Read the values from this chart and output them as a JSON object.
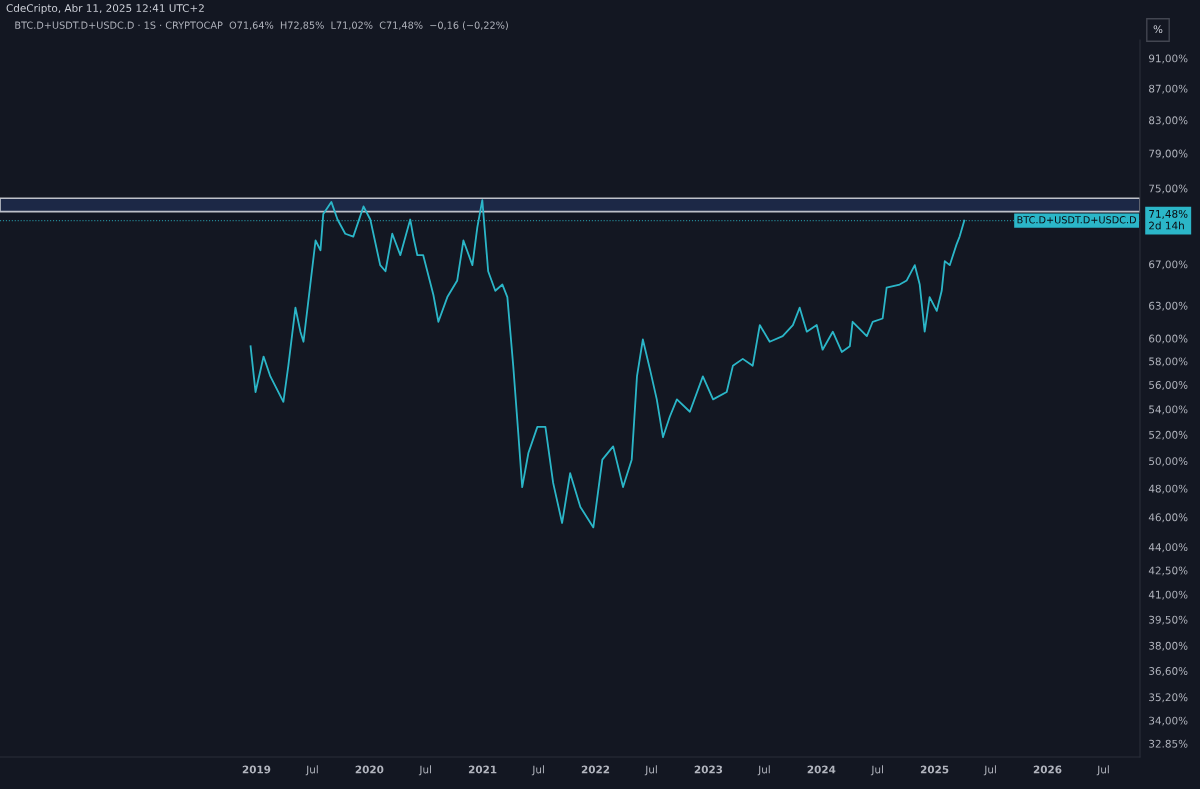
{
  "chart_data": {
    "type": "line",
    "subtitle": "CdeCripto, Abr 11, 2025 12:41 UTC+2",
    "title": "BTC.D+USDT.D+USDC.D · 1S · CRYPTOCAP  O71,64%  H72,85%  L71,02%  C71,48%  −0,16 (−0,22%)",
    "x": [
      "2018-12-13",
      "2018-12-29",
      "2019-01-24",
      "2019-02-15",
      "2019-03-29",
      "2019-04-14",
      "2019-05-07",
      "2019-05-23",
      "2019-06-02",
      "2019-06-24",
      "2019-07-11",
      "2019-07-27",
      "2019-08-05",
      "2019-08-31",
      "2019-09-20",
      "2019-10-15",
      "2019-11-10",
      "2019-12-13",
      "2020-01-04",
      "2020-02-05",
      "2020-02-22",
      "2020-03-15",
      "2020-04-10",
      "2020-05-12",
      "2020-05-22",
      "2020-06-04",
      "2020-06-23",
      "2020-07-26",
      "2020-08-11",
      "2020-09-09",
      "2020-10-11",
      "2020-10-31",
      "2020-11-29",
      "2020-12-15",
      "2020-12-31",
      "2021-01-19",
      "2021-02-11",
      "2021-03-06",
      "2021-03-22",
      "2021-04-10",
      "2021-04-26",
      "2021-05-09",
      "2021-05-29",
      "2021-06-27",
      "2021-07-23",
      "2021-08-17",
      "2021-09-15",
      "2021-10-11",
      "2021-11-13",
      "2021-12-25",
      "2022-01-23",
      "2022-02-27",
      "2022-03-31",
      "2022-04-28",
      "2022-05-15",
      "2022-06-03",
      "2022-06-26",
      "2022-07-18",
      "2022-08-07",
      "2022-08-29",
      "2022-09-21",
      "2022-11-02",
      "2022-12-14",
      "2023-01-16",
      "2023-03-01",
      "2023-03-21",
      "2023-04-22",
      "2023-05-24",
      "2023-06-16",
      "2023-07-18",
      "2023-08-29",
      "2023-10-01",
      "2023-10-23",
      "2023-11-15",
      "2023-12-17",
      "2024-01-05",
      "2024-02-07",
      "2024-03-07",
      "2024-04-02",
      "2024-04-11",
      "2024-05-27",
      "2024-06-15",
      "2024-07-17",
      "2024-07-30",
      "2024-09-10",
      "2024-10-03",
      "2024-10-29",
      "2024-11-14",
      "2024-11-30",
      "2024-12-16",
      "2025-01-08",
      "2025-01-24",
      "2025-02-03",
      "2025-02-19",
      "2025-03-13",
      "2025-03-23",
      "2025-04-07"
    ],
    "series": [
      {
        "color": "#2bb6c8",
        "values": [
          59.3,
          55.4,
          58.4,
          56.7,
          54.6,
          57.6,
          62.8,
          60.6,
          59.7,
          65.0,
          69.4,
          68.4,
          72.2,
          73.5,
          71.6,
          70.1,
          69.8,
          73.0,
          71.6,
          66.9,
          66.3,
          70.1,
          67.9,
          71.6,
          69.8,
          67.9,
          67.9,
          64.0,
          61.5,
          63.8,
          65.4,
          69.4,
          66.9,
          70.8,
          73.7,
          66.3,
          64.4,
          65.0,
          63.8,
          57.6,
          52.2,
          48.1,
          50.6,
          52.6,
          52.6,
          48.4,
          45.6,
          49.1,
          46.7,
          45.3,
          50.1,
          51.1,
          48.1,
          50.1,
          56.7,
          59.9,
          57.3,
          54.8,
          51.8,
          53.4,
          54.8,
          53.8,
          56.7,
          54.8,
          55.4,
          57.6,
          58.2,
          57.6,
          61.2,
          59.7,
          60.2,
          61.2,
          62.8,
          60.6,
          61.2,
          59.0,
          60.6,
          58.8,
          59.3,
          61.5,
          60.2,
          61.5,
          61.8,
          64.7,
          65.0,
          65.4,
          66.9,
          65.0,
          60.6,
          63.8,
          62.5,
          64.4,
          67.3,
          66.9,
          69.0,
          69.8,
          71.48
        ]
      }
    ],
    "log": "y",
    "xlim": [
      "2016-09-24",
      "2026-10-27"
    ],
    "xticks": [
      {
        "value": "2019-01-01",
        "label": "2019"
      },
      {
        "value": "2019-07-01",
        "label": "Jul"
      },
      {
        "value": "2020-01-01",
        "label": "2020"
      },
      {
        "value": "2020-07-01",
        "label": "Jul"
      },
      {
        "value": "2021-01-01",
        "label": "2021"
      },
      {
        "value": "2021-07-01",
        "label": "Jul"
      },
      {
        "value": "2022-01-01",
        "label": "2022"
      },
      {
        "value": "2022-07-01",
        "label": "Jul"
      },
      {
        "value": "2023-01-01",
        "label": "2023"
      },
      {
        "value": "2023-07-01",
        "label": "Jul"
      },
      {
        "value": "2024-01-01",
        "label": "2024"
      },
      {
        "value": "2024-07-01",
        "label": "Jul"
      },
      {
        "value": "2025-01-01",
        "label": "2025"
      },
      {
        "value": "2025-07-01",
        "label": "Jul"
      },
      {
        "value": "2026-01-01",
        "label": "2026"
      },
      {
        "value": "2026-07-01",
        "label": "Jul"
      }
    ],
    "ylim": [
      32.2,
      93.5
    ],
    "yticks": [
      {
        "value": 32.85,
        "label": "32.85%"
      },
      {
        "value": 34,
        "label": "34,00%"
      },
      {
        "value": 35.2,
        "label": "35,20%"
      },
      {
        "value": 36.6,
        "label": "36,60%"
      },
      {
        "value": 38,
        "label": "38,00%"
      },
      {
        "value": 39.5,
        "label": "39,50%"
      },
      {
        "value": 41,
        "label": "41,00%"
      },
      {
        "value": 42.5,
        "label": "42,50%"
      },
      {
        "value": 44,
        "label": "44,00%"
      },
      {
        "value": 46,
        "label": "46,00%"
      },
      {
        "value": 48,
        "label": "48,00%"
      },
      {
        "value": 50,
        "label": "50,00%"
      },
      {
        "value": 52,
        "label": "52,00%"
      },
      {
        "value": 54,
        "label": "54,00%"
      },
      {
        "value": 56,
        "label": "56,00%"
      },
      {
        "value": 58,
        "label": "58,00%"
      },
      {
        "value": 60,
        "label": "60,00%"
      },
      {
        "value": 63,
        "label": "63,00%"
      },
      {
        "value": 67,
        "label": "67,00%"
      },
      {
        "value": 75,
        "label": "75,00%"
      },
      {
        "value": 79,
        "label": "79,00%"
      },
      {
        "value": 83,
        "label": "83,00%"
      },
      {
        "value": 87,
        "label": "87,00%"
      },
      {
        "value": 91,
        "label": "91,00%"
      }
    ],
    "ref_lines": [
      {
        "axis": "y",
        "value": 71.48,
        "label": "BTC.D+USDT.D+USDC.D",
        "color": "#2bb6c8",
        "line_style": "dotted"
      }
    ],
    "bands": [
      {
        "axis": "y",
        "from": 72.45,
        "to": 73.9,
        "color": "#1e2a4a"
      }
    ],
    "annotations": [
      "71,48%\n2d 14h",
      "%"
    ],
    "grid": false,
    "marker": "none",
    "line_style": "solid"
  }
}
